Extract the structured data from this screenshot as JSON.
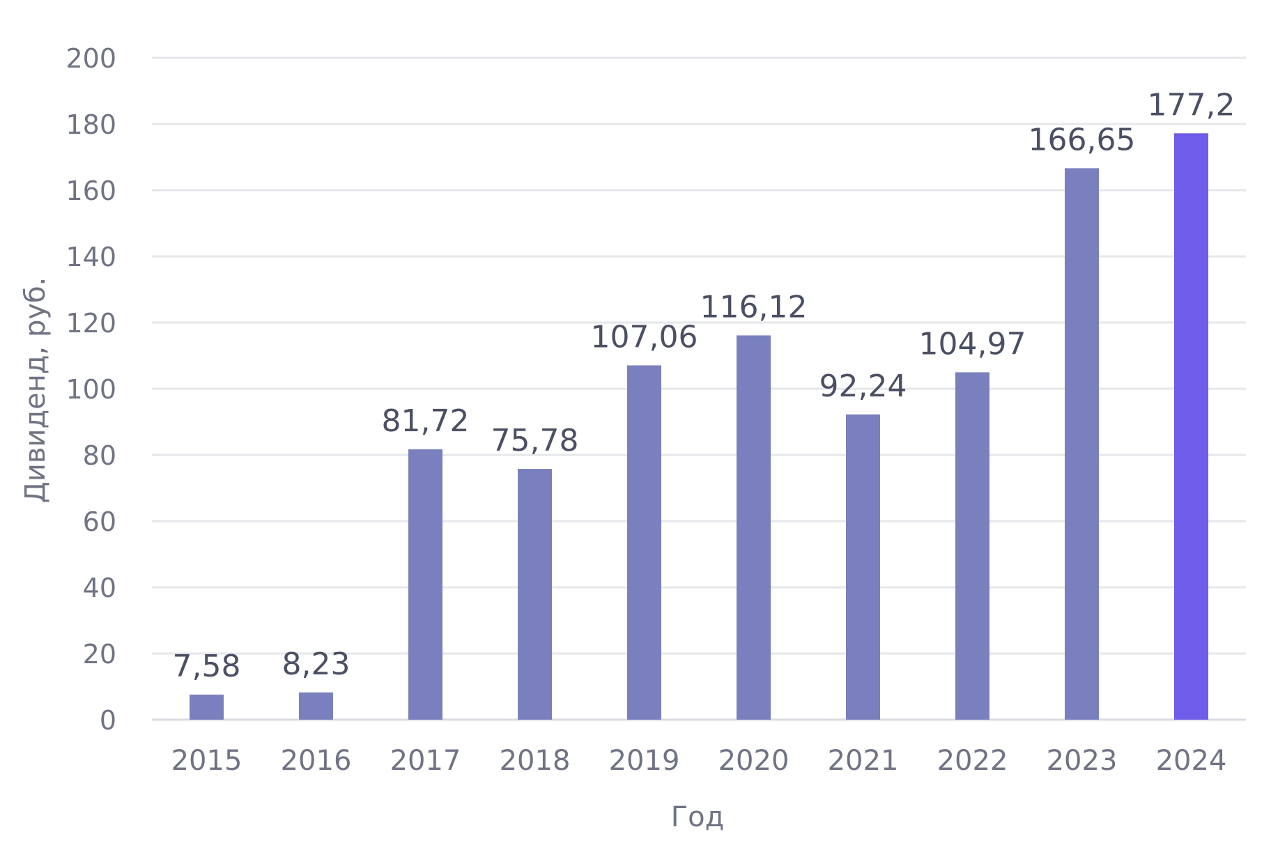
{
  "chart_data": {
    "type": "bar",
    "title": "",
    "xlabel": "Год",
    "ylabel": "Дивиденд, руб.",
    "categories": [
      "2015",
      "2016",
      "2017",
      "2018",
      "2019",
      "2020",
      "2021",
      "2022",
      "2023",
      "2024"
    ],
    "values": [
      7.58,
      8.23,
      81.72,
      75.78,
      107.06,
      116.12,
      92.24,
      104.97,
      166.65,
      177.2
    ],
    "data_labels": [
      "7,58",
      "8,23",
      "81,72",
      "75,78",
      "107,06",
      "116,12",
      "92,24",
      "104,97",
      "166,65",
      "177,2"
    ],
    "y_ticks": [
      "0",
      "20",
      "40",
      "60",
      "80",
      "100",
      "120",
      "140",
      "160",
      "180",
      "200"
    ],
    "ylim": [
      0,
      200
    ],
    "grid": true,
    "legend": "none",
    "colors": {
      "bar": "#7a80bd",
      "highlight": "#6f5ce8"
    },
    "highlight_category": "2024"
  }
}
